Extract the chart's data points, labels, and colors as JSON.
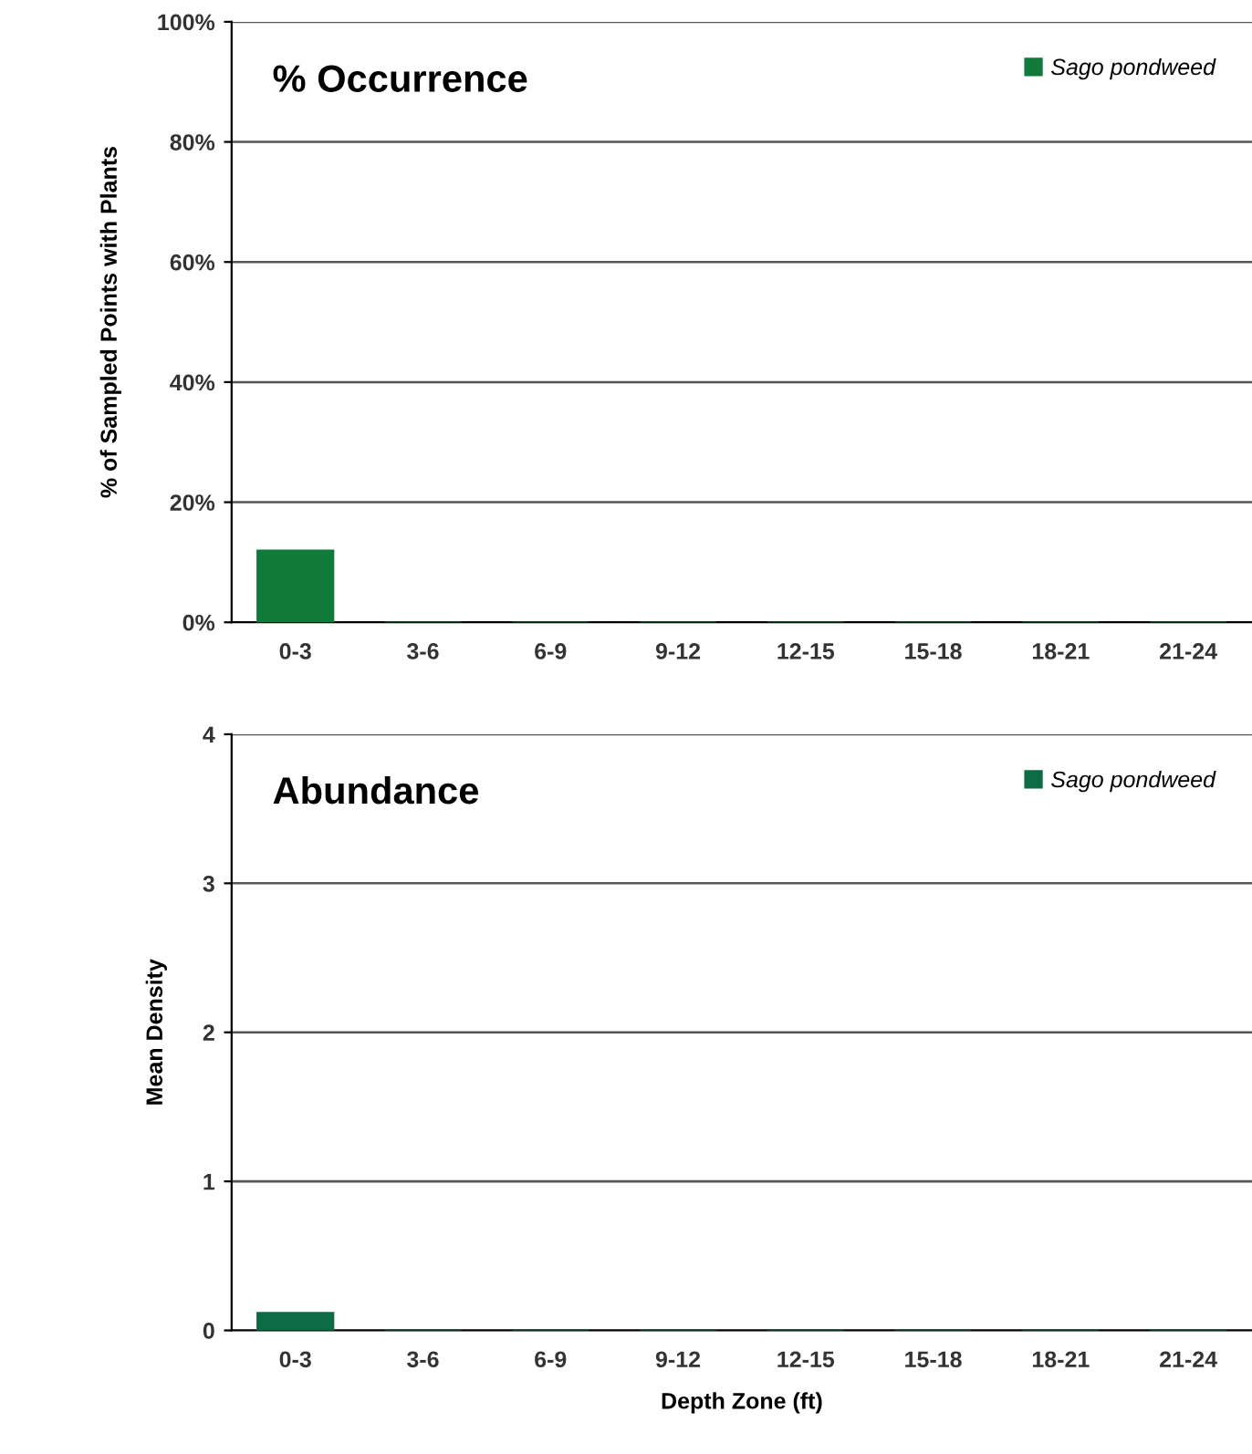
{
  "chart_data": [
    {
      "type": "bar",
      "title": "% Occurrence",
      "ylabel": "% of Sampled Points with Plants",
      "categories": [
        "0-3",
        "3-6",
        "6-9",
        "9-12",
        "12-15",
        "15-18",
        "18-21",
        "21-24"
      ],
      "series": [
        {
          "name": "Sago pondweed",
          "color": "#117a3a",
          "values": [
            12,
            0,
            0,
            0,
            0,
            0,
            0,
            0
          ]
        }
      ],
      "ylim": [
        0,
        100
      ],
      "yticks": [
        {
          "value": 0,
          "label": "0%"
        },
        {
          "value": 20,
          "label": "20%"
        },
        {
          "value": 40,
          "label": "40%"
        },
        {
          "value": 60,
          "label": "60%"
        },
        {
          "value": 80,
          "label": "80%"
        },
        {
          "value": 100,
          "label": "100%"
        }
      ],
      "grid": "y",
      "legend": "top right"
    },
    {
      "type": "bar",
      "title": "Abundance",
      "ylabel": "Mean Density",
      "xlabel": "Depth Zone (ft)",
      "categories": [
        "0-3",
        "3-6",
        "6-9",
        "9-12",
        "12-15",
        "15-18",
        "18-21",
        "21-24"
      ],
      "series": [
        {
          "name": "Sago pondweed",
          "color": "#0d6b45",
          "values": [
            0.12,
            0,
            0,
            0,
            0,
            0,
            0,
            0
          ]
        }
      ],
      "ylim": [
        0,
        4
      ],
      "yticks": [
        0,
        1,
        2,
        3,
        4
      ],
      "grid": "y",
      "legend": "top right"
    }
  ]
}
